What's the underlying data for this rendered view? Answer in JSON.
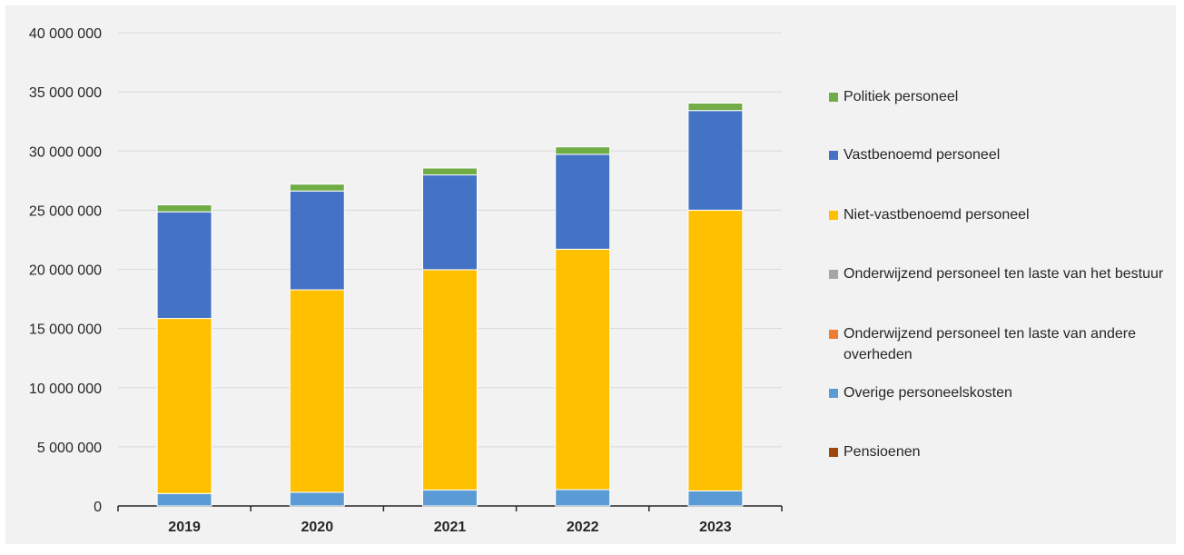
{
  "chart_data": {
    "type": "bar",
    "stacked": true,
    "title": "",
    "xlabel": "",
    "ylabel": "",
    "categories": [
      "2019",
      "2020",
      "2021",
      "2022",
      "2023"
    ],
    "ylim": [
      0,
      40000000
    ],
    "yticks": [
      0,
      5000000,
      10000000,
      15000000,
      20000000,
      25000000,
      30000000,
      35000000,
      40000000
    ],
    "ytick_labels": [
      "0",
      "5 000 000",
      "10 000 000",
      "15 000 000",
      "20 000 000",
      "25 000 000",
      "30 000 000",
      "35 000 000",
      "40 000 000"
    ],
    "grid": true,
    "legend_position": "right",
    "series": [
      {
        "name": "Pensioenen",
        "color": "#9e480e",
        "values": [
          0,
          0,
          0,
          0,
          0
        ]
      },
      {
        "name": "Overige personeelskosten",
        "color": "#5b9bd5",
        "values": [
          1050000,
          1150000,
          1350000,
          1380000,
          1270000
        ]
      },
      {
        "name": "Onderwijzend personeel ten laste van andere overheden",
        "color": "#ed7d31",
        "values": [
          0,
          0,
          0,
          0,
          0
        ]
      },
      {
        "name": "Onderwijzend personeel ten laste van het bestuur",
        "color": "#a5a5a5",
        "values": [
          0,
          0,
          0,
          0,
          0
        ]
      },
      {
        "name": "Niet-vastbenoemd personeel",
        "color": "#ffc000",
        "values": [
          14800000,
          17120000,
          18620000,
          20320000,
          23730000
        ]
      },
      {
        "name": "Vastbenoemd personeel",
        "color": "#4472c4",
        "values": [
          9010000,
          8350000,
          8010000,
          8020000,
          8420000
        ]
      },
      {
        "name": "Politiek personeel",
        "color": "#70ad47",
        "values": [
          590000,
          580000,
          580000,
          630000,
          630000
        ]
      }
    ],
    "legend_order": [
      "Politiek personeel",
      "Vastbenoemd personeel",
      "Niet-vastbenoemd personeel",
      "Onderwijzend personeel ten laste van het bestuur",
      "Onderwijzend personeel ten laste van andere overheden",
      "Overige personeelskosten",
      "Pensioenen"
    ]
  }
}
